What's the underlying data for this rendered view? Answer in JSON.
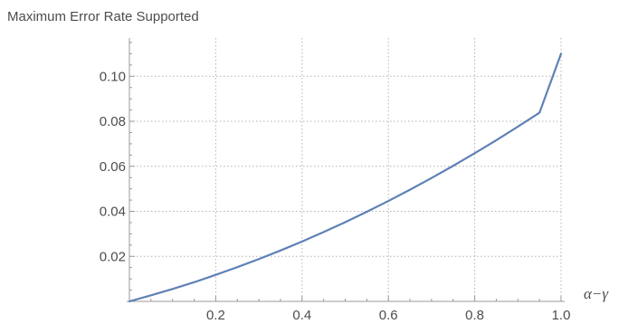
{
  "chart_data": {
    "type": "line",
    "title": "Maximum Error Rate Supported",
    "xlabel": "α−γ",
    "ylabel": "",
    "xlim": [
      0,
      1.0
    ],
    "ylim": [
      0,
      0.117
    ],
    "grid": true,
    "x_ticks": [
      {
        "value": 0.2,
        "label": "0.2"
      },
      {
        "value": 0.4,
        "label": "0.4"
      },
      {
        "value": 0.6,
        "label": "0.6"
      },
      {
        "value": 0.8,
        "label": "0.8"
      },
      {
        "value": 1.0,
        "label": "1.0"
      }
    ],
    "y_ticks": [
      {
        "value": 0.02,
        "label": "0.02"
      },
      {
        "value": 0.04,
        "label": "0.04"
      },
      {
        "value": 0.06,
        "label": "0.06"
      },
      {
        "value": 0.08,
        "label": "0.08"
      },
      {
        "value": 0.1,
        "label": "0.10"
      }
    ],
    "series": [
      {
        "color": "#5e81b5",
        "x": [
          0,
          0.05,
          0.1,
          0.15,
          0.2,
          0.25,
          0.3,
          0.35,
          0.4,
          0.45,
          0.5,
          0.55,
          0.6,
          0.65,
          0.7,
          0.75,
          0.8,
          0.85,
          0.9,
          0.95,
          1.0
        ],
        "y": [
          0,
          0.0027,
          0.0055,
          0.0085,
          0.0118,
          0.0152,
          0.0188,
          0.0226,
          0.0266,
          0.0308,
          0.0352,
          0.0398,
          0.0446,
          0.0496,
          0.0548,
          0.0602,
          0.0658,
          0.0716,
          0.0776,
          0.0838,
          0.11
        ]
      }
    ]
  }
}
